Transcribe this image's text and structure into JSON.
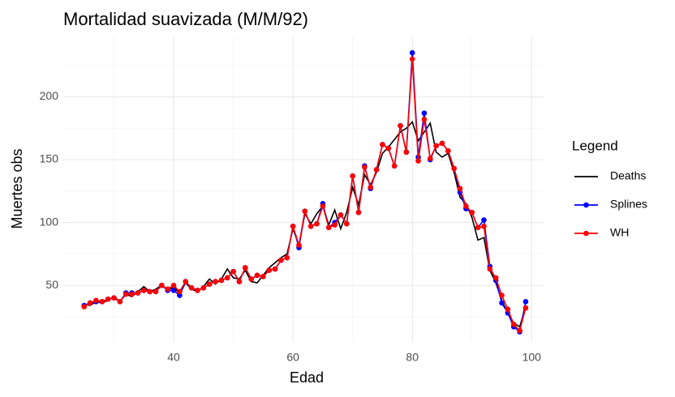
{
  "chart_data": {
    "type": "line",
    "title": "Mortalidad suavizada (M/M/92)",
    "x_label": "Edad",
    "y_label": "Muertes obs",
    "legend_title": "Legend",
    "legend_position": "right",
    "grid": true,
    "x": [
      25,
      26,
      27,
      28,
      29,
      30,
      31,
      32,
      33,
      34,
      35,
      36,
      37,
      38,
      39,
      40,
      41,
      42,
      43,
      44,
      45,
      46,
      47,
      48,
      49,
      50,
      51,
      52,
      53,
      54,
      55,
      56,
      57,
      58,
      59,
      60,
      61,
      62,
      63,
      64,
      65,
      66,
      67,
      68,
      69,
      70,
      71,
      72,
      73,
      74,
      75,
      76,
      77,
      78,
      79,
      80,
      81,
      82,
      83,
      84,
      85,
      86,
      87,
      88,
      89,
      90,
      91,
      92,
      93,
      94,
      95,
      96,
      97,
      98,
      99
    ],
    "xlim": [
      21.5,
      102
    ],
    "xticks": [
      40,
      60,
      80,
      100
    ],
    "x_minor_ticks": [
      30,
      50,
      70,
      90
    ],
    "ylim": [
      5,
      248
    ],
    "yticks": [
      50,
      100,
      150,
      200
    ],
    "y_minor_ticks": [
      25,
      75,
      125,
      175,
      225
    ],
    "series": [
      {
        "name": "Deaths",
        "color": "#000000",
        "markers": false,
        "values": [
          35,
          34,
          37,
          36,
          38,
          41,
          37,
          43,
          41,
          45,
          49,
          45,
          47,
          50,
          46,
          49,
          43,
          52,
          47,
          45,
          49,
          55,
          51,
          55,
          63,
          56,
          55,
          62,
          53,
          52,
          58,
          64,
          68,
          72,
          75,
          95,
          82,
          107,
          99,
          107,
          113,
          98,
          110,
          95,
          108,
          128,
          114,
          138,
          130,
          140,
          155,
          160,
          166,
          172,
          175,
          180,
          165,
          172,
          179,
          156,
          152,
          155,
          140,
          120,
          115,
          104,
          86,
          88,
          62,
          52,
          38,
          28,
          20,
          17,
          33
        ]
      },
      {
        "name": "Splines",
        "color": "#0000ff",
        "markers": true,
        "values": [
          34,
          36,
          37,
          37,
          39,
          40,
          37,
          44,
          44,
          44,
          46,
          45,
          45,
          50,
          46,
          46,
          42,
          53,
          48,
          46,
          48,
          51,
          53,
          54,
          56,
          61,
          53,
          64,
          55,
          58,
          57,
          62,
          63,
          70,
          72,
          97,
          80,
          109,
          97,
          99,
          115,
          96,
          100,
          106,
          99,
          137,
          108,
          145,
          127,
          142,
          162,
          159,
          145,
          177,
          156,
          235,
          152,
          187,
          150,
          161,
          163,
          157,
          143,
          124,
          111,
          108,
          96,
          102,
          65,
          54,
          36,
          28,
          17,
          13,
          37
        ]
      },
      {
        "name": "WH",
        "color": "#ff0000",
        "markers": true,
        "values": [
          33,
          36,
          38,
          37,
          39,
          40,
          37,
          43,
          43,
          44,
          46,
          45,
          45,
          50,
          47,
          50,
          45,
          53,
          48,
          46,
          48,
          51,
          53,
          54,
          56,
          61,
          53,
          64,
          55,
          58,
          57,
          62,
          63,
          70,
          72,
          97,
          82,
          109,
          97,
          99,
          113,
          96,
          98,
          106,
          99,
          137,
          108,
          144,
          128,
          142,
          162,
          159,
          145,
          177,
          156,
          230,
          149,
          182,
          151,
          161,
          163,
          157,
          143,
          127,
          113,
          108,
          96,
          97,
          63,
          56,
          42,
          31,
          19,
          14,
          32
        ]
      }
    ]
  }
}
